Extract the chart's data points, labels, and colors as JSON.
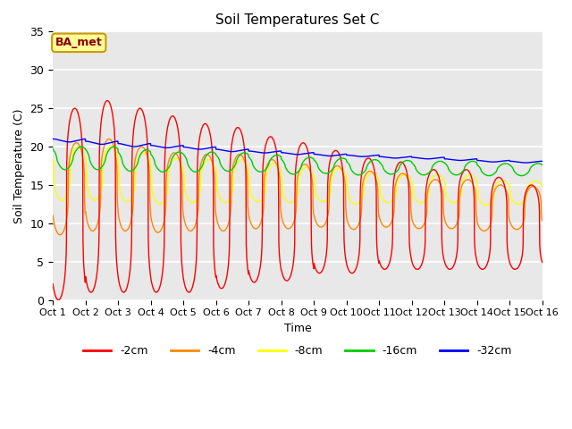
{
  "title": "Soil Temperatures Set C",
  "xlabel": "Time",
  "ylabel": "Soil Temperature (C)",
  "ylim": [
    0,
    35
  ],
  "xlim": [
    0,
    15
  ],
  "xtick_labels": [
    "Oct 1",
    "Oct 2",
    "Oct 3",
    "Oct 4",
    "Oct 5",
    "Oct 6",
    "Oct 7",
    "Oct 8",
    "Oct 9",
    "Oct 10",
    "Oct 11",
    "Oct 12",
    "Oct 13",
    "Oct 14",
    "Oct 15",
    "Oct 16"
  ],
  "ytick_values": [
    0,
    5,
    10,
    15,
    20,
    25,
    30,
    35
  ],
  "colors": {
    "-2cm": "#ff0000",
    "-4cm": "#ff8800",
    "-8cm": "#ffff00",
    "-16cm": "#00cc00",
    "-32cm": "#0000ff"
  },
  "legend_label": "BA_met",
  "bg_color": "#e8e8e8",
  "annotation_bg": "#ffff99",
  "annotation_border": "#cc9900",
  "num_points_per_day": 144,
  "num_days": 15,
  "daily_means_2cm": [
    12.5,
    13.5,
    13.0,
    12.5,
    12.0,
    12.0,
    11.8,
    11.5,
    11.5,
    11.0,
    11.0,
    10.5,
    10.5,
    10.0,
    9.5
  ],
  "daily_means_4cm": [
    14.5,
    15.0,
    14.5,
    14.0,
    14.0,
    14.0,
    13.8,
    13.5,
    13.5,
    13.0,
    13.0,
    12.5,
    12.5,
    12.0,
    12.0
  ],
  "daily_means_8cm": [
    16.5,
    16.5,
    16.0,
    15.5,
    15.5,
    15.5,
    15.3,
    15.0,
    15.0,
    14.5,
    14.5,
    14.5,
    14.5,
    14.0,
    14.0
  ],
  "daily_means_16cm": [
    18.5,
    18.5,
    18.2,
    18.0,
    18.0,
    18.0,
    17.8,
    17.5,
    17.5,
    17.3,
    17.3,
    17.2,
    17.2,
    17.0,
    17.0
  ],
  "daily_means_32cm": [
    20.8,
    20.5,
    20.2,
    20.0,
    19.8,
    19.5,
    19.3,
    19.1,
    18.9,
    18.8,
    18.6,
    18.5,
    18.3,
    18.1,
    18.0
  ],
  "amplitudes_2cm": [
    12.5,
    12.5,
    12.0,
    11.5,
    11.0,
    10.5,
    9.5,
    9.0,
    8.0,
    7.5,
    7.0,
    6.5,
    6.5,
    6.0,
    5.5
  ],
  "amplitudes_4cm": [
    6.0,
    6.0,
    5.5,
    5.2,
    5.0,
    5.0,
    4.5,
    4.2,
    4.0,
    3.8,
    3.5,
    3.2,
    3.2,
    3.0,
    2.8
  ],
  "amplitudes_8cm": [
    3.5,
    3.5,
    3.2,
    3.0,
    2.8,
    2.8,
    2.5,
    2.3,
    2.2,
    2.0,
    1.8,
    1.8,
    1.8,
    1.6,
    1.5
  ],
  "amplitudes_16cm": [
    1.5,
    1.5,
    1.4,
    1.3,
    1.3,
    1.2,
    1.1,
    1.1,
    1.0,
    1.0,
    0.9,
    0.9,
    0.9,
    0.8,
    0.8
  ],
  "amplitudes_32cm": [
    0.2,
    0.2,
    0.2,
    0.15,
    0.15,
    0.15,
    0.12,
    0.12,
    0.12,
    0.1,
    0.1,
    0.1,
    0.1,
    0.1,
    0.1
  ],
  "phase_2cm": 0.42,
  "phase_4cm": 0.47,
  "phase_8cm": 0.53,
  "phase_16cm": 0.62,
  "phase_32cm": 0.75,
  "skew_2cm": 4.0,
  "skew_4cm": 3.0,
  "skew_8cm": 2.5,
  "skew_16cm": 1.5,
  "skew_32cm": 0.8
}
